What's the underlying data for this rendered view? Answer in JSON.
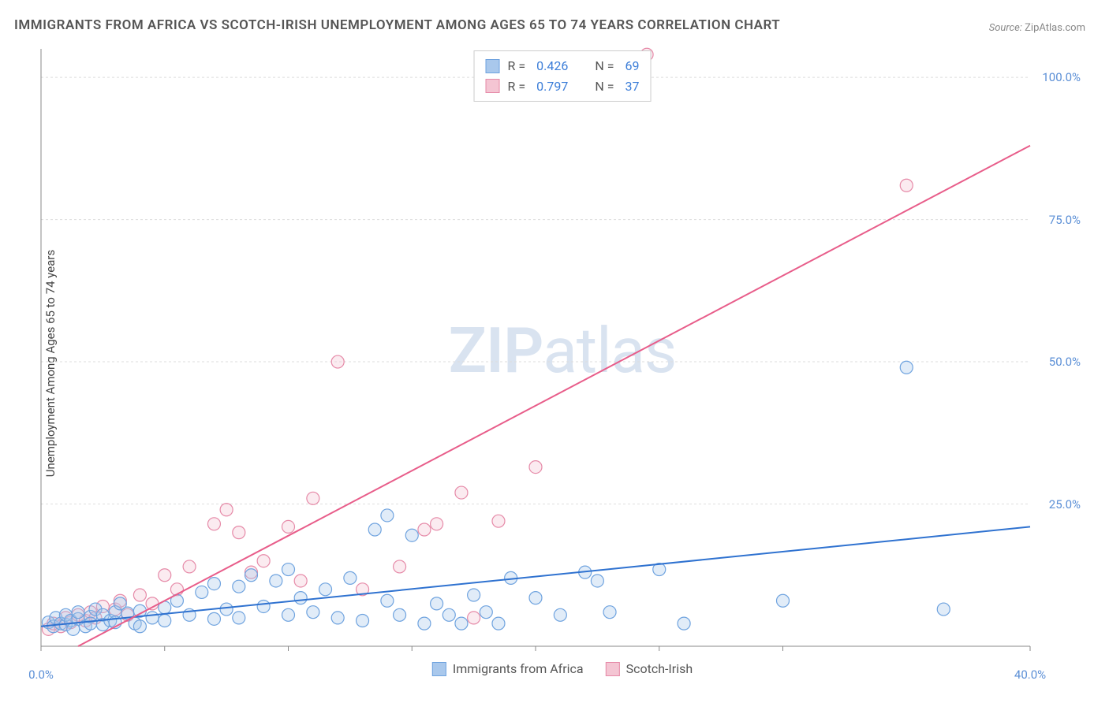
{
  "title": "IMMIGRANTS FROM AFRICA VS SCOTCH-IRISH UNEMPLOYMENT AMONG AGES 65 TO 74 YEARS CORRELATION CHART",
  "source_label": "Source:",
  "source_value": "ZipAtlas.com",
  "y_axis_label": "Unemployment Among Ages 65 to 74 years",
  "watermark_part1": "ZIP",
  "watermark_part2": "atlas",
  "chart": {
    "type": "scatter",
    "background_color": "#ffffff",
    "grid_color": "#dddddd",
    "axis_color": "#888888",
    "xlim": [
      0,
      40
    ],
    "ylim": [
      0,
      105
    ],
    "x_ticks": [
      0,
      5,
      10,
      15,
      20,
      25,
      30,
      40
    ],
    "x_tick_labels": {
      "0": "0.0%",
      "40": "40.0%"
    },
    "y_ticks": [
      25,
      50,
      75,
      100
    ],
    "y_tick_labels": {
      "25": "25.0%",
      "50": "50.0%",
      "75": "75.0%",
      "100": "100.0%"
    },
    "marker_radius": 8,
    "marker_stroke_width": 1.2,
    "marker_fill_opacity": 0.35,
    "line_width": 2,
    "tick_label_color": "#5b8fd6",
    "tick_label_fontsize": 15
  },
  "legend_stats": {
    "r_label": "R =",
    "n_label": "N ="
  },
  "bottom_legend": {
    "series1": "Immigrants from Africa",
    "series2": "Scotch-Irish"
  },
  "series": [
    {
      "id": "africa",
      "name": "Immigrants from Africa",
      "color_fill": "#a9c8ec",
      "color_stroke": "#6fa3df",
      "line_color": "#2f72d0",
      "r": "0.426",
      "n": "69",
      "trend": {
        "x1": 0,
        "y1": 3.5,
        "x2": 40,
        "y2": 21
      },
      "points": [
        [
          0.3,
          4.2
        ],
        [
          0.5,
          3.5
        ],
        [
          0.6,
          5.0
        ],
        [
          0.8,
          4.0
        ],
        [
          1.0,
          3.8
        ],
        [
          1.0,
          5.5
        ],
        [
          1.2,
          4.5
        ],
        [
          1.3,
          3.0
        ],
        [
          1.5,
          4.8
        ],
        [
          1.5,
          6.0
        ],
        [
          1.8,
          3.5
        ],
        [
          2.0,
          5.2
        ],
        [
          2.0,
          4.0
        ],
        [
          2.2,
          6.5
        ],
        [
          2.5,
          5.5
        ],
        [
          2.5,
          3.8
        ],
        [
          2.8,
          4.5
        ],
        [
          3.0,
          6.0
        ],
        [
          3.0,
          4.2
        ],
        [
          3.2,
          7.5
        ],
        [
          3.5,
          5.8
        ],
        [
          3.8,
          4.0
        ],
        [
          4.0,
          6.2
        ],
        [
          4.0,
          3.5
        ],
        [
          4.5,
          5.0
        ],
        [
          5.0,
          6.8
        ],
        [
          5.0,
          4.5
        ],
        [
          5.5,
          8.0
        ],
        [
          6.0,
          5.5
        ],
        [
          6.5,
          9.5
        ],
        [
          7.0,
          4.8
        ],
        [
          7.0,
          11.0
        ],
        [
          7.5,
          6.5
        ],
        [
          8.0,
          10.5
        ],
        [
          8.0,
          5.0
        ],
        [
          8.5,
          12.5
        ],
        [
          9.0,
          7.0
        ],
        [
          9.5,
          11.5
        ],
        [
          10.0,
          5.5
        ],
        [
          10.0,
          13.5
        ],
        [
          10.5,
          8.5
        ],
        [
          11.0,
          6.0
        ],
        [
          11.5,
          10.0
        ],
        [
          12.0,
          5.0
        ],
        [
          12.5,
          12.0
        ],
        [
          13.0,
          4.5
        ],
        [
          13.5,
          20.5
        ],
        [
          14.0,
          23.0
        ],
        [
          14.0,
          8.0
        ],
        [
          14.5,
          5.5
        ],
        [
          15.0,
          19.5
        ],
        [
          15.5,
          4.0
        ],
        [
          16.0,
          7.5
        ],
        [
          16.5,
          5.5
        ],
        [
          17.0,
          4.0
        ],
        [
          17.5,
          9.0
        ],
        [
          18.0,
          6.0
        ],
        [
          18.5,
          4.0
        ],
        [
          19.0,
          12.0
        ],
        [
          20.0,
          8.5
        ],
        [
          21.0,
          5.5
        ],
        [
          22.0,
          13.0
        ],
        [
          22.5,
          11.5
        ],
        [
          23.0,
          6.0
        ],
        [
          25.0,
          13.5
        ],
        [
          26.0,
          4.0
        ],
        [
          30.0,
          8.0
        ],
        [
          35.0,
          49.0
        ],
        [
          36.5,
          6.5
        ]
      ]
    },
    {
      "id": "scotch",
      "name": "Scotch-Irish",
      "color_fill": "#f4c5d3",
      "color_stroke": "#e68aa8",
      "line_color": "#e85d8a",
      "r": "0.797",
      "n": "37",
      "trend": {
        "x1": 1.5,
        "y1": 0,
        "x2": 40,
        "y2": 88
      },
      "points": [
        [
          0.3,
          3.0
        ],
        [
          0.5,
          4.0
        ],
        [
          0.8,
          3.5
        ],
        [
          1.0,
          5.0
        ],
        [
          1.2,
          4.2
        ],
        [
          1.5,
          5.5
        ],
        [
          1.8,
          4.5
        ],
        [
          2.0,
          6.0
        ],
        [
          2.2,
          5.0
        ],
        [
          2.5,
          7.0
        ],
        [
          3.0,
          6.5
        ],
        [
          3.2,
          8.0
        ],
        [
          3.5,
          5.5
        ],
        [
          4.0,
          9.0
        ],
        [
          4.5,
          7.5
        ],
        [
          5.0,
          12.5
        ],
        [
          5.5,
          10.0
        ],
        [
          6.0,
          14.0
        ],
        [
          7.0,
          21.5
        ],
        [
          7.5,
          24.0
        ],
        [
          8.0,
          20.0
        ],
        [
          8.5,
          13.0
        ],
        [
          9.0,
          15.0
        ],
        [
          10.0,
          21.0
        ],
        [
          10.5,
          11.5
        ],
        [
          11.0,
          26.0
        ],
        [
          12.0,
          50.0
        ],
        [
          13.0,
          10.0
        ],
        [
          14.5,
          14.0
        ],
        [
          15.5,
          20.5
        ],
        [
          16.0,
          21.5
        ],
        [
          17.0,
          27.0
        ],
        [
          18.5,
          22.0
        ],
        [
          20.0,
          31.5
        ],
        [
          24.5,
          104.0
        ],
        [
          35.0,
          81.0
        ],
        [
          17.5,
          5.0
        ]
      ]
    }
  ]
}
